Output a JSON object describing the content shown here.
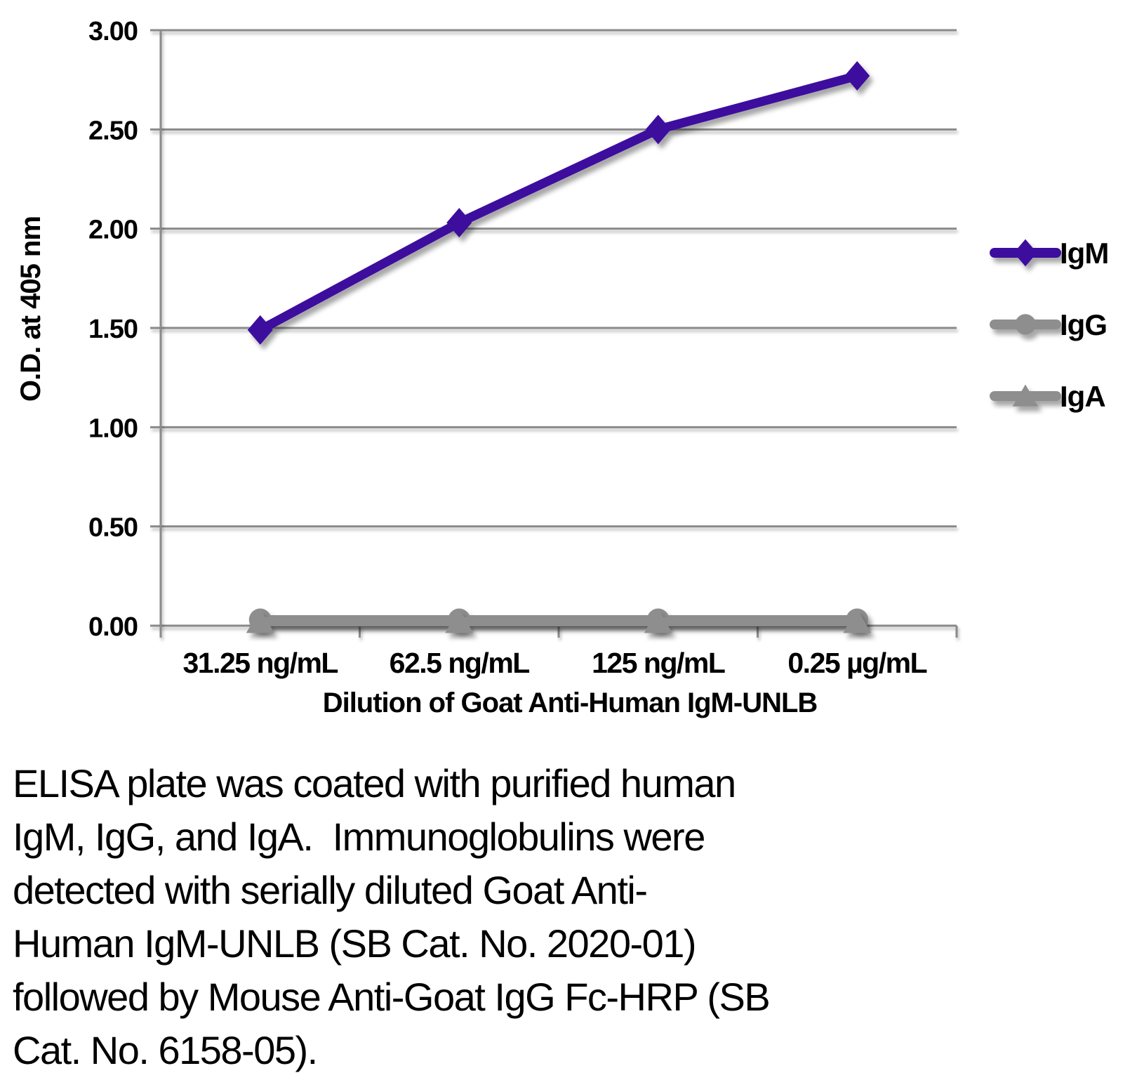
{
  "chart_data": {
    "type": "line",
    "title": "",
    "categories": [
      "31.25 ng/mL",
      "62.5 ng/mL",
      "125 ng/mL",
      "0.25 µg/mL"
    ],
    "series": [
      {
        "name": "IgM",
        "marker": "diamond",
        "color": "#3E0E9E",
        "values": [
          1.49,
          2.03,
          2.5,
          2.77
        ]
      },
      {
        "name": "IgG",
        "marker": "circle",
        "color": "#8E8E8E",
        "values": [
          0.03,
          0.03,
          0.03,
          0.03
        ]
      },
      {
        "name": "IgA",
        "marker": "triangle",
        "color": "#8E8E8E",
        "values": [
          0.02,
          0.02,
          0.02,
          0.02
        ]
      }
    ],
    "xlabel": "Dilution of Goat Anti-Human IgM-UNLB",
    "ylabel": "O.D. at 405 nm",
    "ylim": [
      0,
      3
    ],
    "ytick_step": 0.5,
    "ytick_labels": [
      "0.00",
      "0.50",
      "1.00",
      "1.50",
      "2.00",
      "2.50",
      "3.00"
    ],
    "grid": true,
    "legend_position": "right",
    "legend_entries": [
      "IgM",
      "IgG",
      "IgA"
    ]
  },
  "colors": {
    "igm_purple": "#3E0E9E",
    "series_gray": "#8E8E8E",
    "grid_gray": "#8A8A8A",
    "text_black": "#000000",
    "background": "#FFFFFF"
  },
  "figure": {
    "caption_lines": [
      "ELISA plate was coated with purified human",
      "IgM, IgG, and IgA.  Immunoglobulins were",
      "detected with serially diluted Goat Anti-",
      "Human IgM-UNLB (SB Cat. No. 2020-01)",
      "followed by Mouse Anti-Goat IgG Fc-HRP (SB",
      "Cat. No. 6158-05)."
    ]
  }
}
